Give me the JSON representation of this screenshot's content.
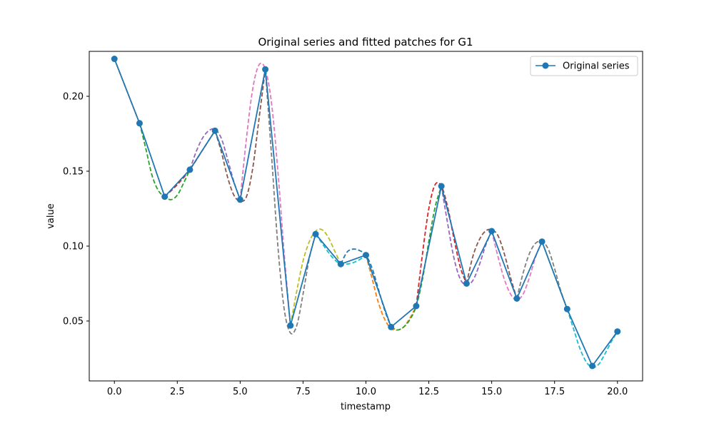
{
  "chart_data": {
    "type": "line",
    "title": "Original series and fitted patches for G1",
    "xlabel": "timestamp",
    "ylabel": "value",
    "xlim": [
      -1,
      21
    ],
    "ylim": [
      0.01,
      0.23
    ],
    "xticks": [
      0.0,
      2.5,
      5.0,
      7.5,
      10.0,
      12.5,
      15.0,
      17.5,
      20.0
    ],
    "xtick_labels": [
      "0.0",
      "2.5",
      "5.0",
      "7.5",
      "10.0",
      "12.5",
      "15.0",
      "17.5",
      "20.0"
    ],
    "yticks": [
      0.05,
      0.1,
      0.15,
      0.2
    ],
    "ytick_labels": [
      "0.05",
      "0.10",
      "0.15",
      "0.20"
    ],
    "grid": false,
    "legend": {
      "position": "top-right",
      "entries": [
        "Original series"
      ]
    },
    "series": [
      {
        "name": "Original series",
        "color": "#1f77b4",
        "marker": "circle",
        "x": [
          0,
          1,
          2,
          3,
          4,
          5,
          6,
          7,
          8,
          9,
          10,
          11,
          12,
          13,
          14,
          15,
          16,
          17,
          18,
          19,
          20
        ],
        "y": [
          0.225,
          0.182,
          0.133,
          0.151,
          0.177,
          0.131,
          0.218,
          0.047,
          0.108,
          0.088,
          0.094,
          0.046,
          0.06,
          0.14,
          0.075,
          0.11,
          0.065,
          0.103,
          0.058,
          0.02,
          0.043
        ]
      }
    ],
    "fitted_patches": [
      {
        "color": "#ff7f0e",
        "x": [
          0,
          0.5,
          1
        ],
        "y": [
          0.225,
          0.2035,
          0.182
        ]
      },
      {
        "color": "#2ca02c",
        "x": [
          1,
          1.25,
          1.5,
          1.75,
          2,
          2.25,
          2.5,
          2.75,
          3
        ],
        "y": [
          0.182,
          0.165,
          0.147,
          0.137,
          0.133,
          0.131,
          0.134,
          0.142,
          0.151
        ]
      },
      {
        "color": "#d62728",
        "x": [
          2,
          2.5,
          3,
          3.5,
          4
        ],
        "y": [
          0.133,
          0.141,
          0.151,
          0.164,
          0.177
        ]
      },
      {
        "color": "#9467bd",
        "x": [
          3,
          3.25,
          3.5,
          3.75,
          4,
          4.25,
          4.5,
          4.75,
          5
        ],
        "y": [
          0.151,
          0.163,
          0.172,
          0.177,
          0.178,
          0.172,
          0.158,
          0.143,
          0.131
        ]
      },
      {
        "color": "#8c564b",
        "x": [
          4,
          4.25,
          4.5,
          4.75,
          5,
          5.25,
          5.5,
          5.75,
          6
        ],
        "y": [
          0.177,
          0.163,
          0.146,
          0.134,
          0.13,
          0.133,
          0.152,
          0.185,
          0.218
        ]
      },
      {
        "color": "#e377c2",
        "x": [
          5,
          5.25,
          5.5,
          5.75,
          6,
          6.25,
          6.5,
          6.75,
          7
        ],
        "y": [
          0.131,
          0.172,
          0.205,
          0.221,
          0.218,
          0.195,
          0.15,
          0.095,
          0.047
        ]
      },
      {
        "color": "#7f7f7f",
        "x": [
          6,
          6.25,
          6.5,
          6.75,
          7,
          7.25,
          7.5,
          7.75,
          8
        ],
        "y": [
          0.218,
          0.16,
          0.1,
          0.058,
          0.042,
          0.047,
          0.068,
          0.092,
          0.108
        ]
      },
      {
        "color": "#bcbd22",
        "x": [
          7,
          7.25,
          7.5,
          7.75,
          8,
          8.25,
          8.5,
          8.75,
          9
        ],
        "y": [
          0.047,
          0.07,
          0.09,
          0.103,
          0.11,
          0.111,
          0.106,
          0.097,
          0.088
        ]
      },
      {
        "color": "#17becf",
        "x": [
          8,
          8.25,
          8.5,
          8.75,
          9,
          9.25,
          9.5,
          9.75,
          10
        ],
        "y": [
          0.108,
          0.102,
          0.096,
          0.091,
          0.088,
          0.088,
          0.089,
          0.091,
          0.094
        ]
      },
      {
        "color": "#1f77b4",
        "x": [
          9,
          9.25,
          9.5,
          9.75,
          10,
          10.25,
          10.5,
          10.75,
          11
        ],
        "y": [
          0.088,
          0.096,
          0.098,
          0.097,
          0.094,
          0.085,
          0.071,
          0.057,
          0.046
        ]
      },
      {
        "color": "#ff7f0e",
        "x": [
          10,
          10.25,
          10.5,
          10.75,
          11,
          11.25,
          11.5,
          11.75,
          12
        ],
        "y": [
          0.094,
          0.078,
          0.062,
          0.051,
          0.045,
          0.044,
          0.046,
          0.052,
          0.06
        ]
      },
      {
        "color": "#2ca02c",
        "x": [
          11,
          11.25,
          11.5,
          11.75,
          12,
          12.25,
          12.5,
          12.75,
          13
        ],
        "y": [
          0.046,
          0.044,
          0.046,
          0.051,
          0.06,
          0.078,
          0.103,
          0.126,
          0.14
        ]
      },
      {
        "color": "#d62728",
        "x": [
          12,
          12.25,
          12.5,
          12.75,
          13,
          13.25,
          13.5,
          13.75,
          14
        ],
        "y": [
          0.06,
          0.095,
          0.125,
          0.141,
          0.14,
          0.126,
          0.105,
          0.086,
          0.075
        ]
      },
      {
        "color": "#9467bd",
        "x": [
          13,
          13.25,
          13.5,
          13.75,
          14,
          14.25,
          14.5,
          14.75,
          15
        ],
        "y": [
          0.14,
          0.115,
          0.092,
          0.078,
          0.074,
          0.077,
          0.087,
          0.1,
          0.11
        ]
      },
      {
        "color": "#8c564b",
        "x": [
          14,
          14.25,
          14.5,
          14.75,
          15,
          15.25,
          15.5,
          15.75,
          16
        ],
        "y": [
          0.075,
          0.093,
          0.104,
          0.11,
          0.111,
          0.107,
          0.095,
          0.079,
          0.065
        ]
      },
      {
        "color": "#e377c2",
        "x": [
          15,
          15.25,
          15.5,
          15.75,
          16,
          16.25,
          16.5,
          16.75,
          17
        ],
        "y": [
          0.11,
          0.093,
          0.078,
          0.068,
          0.064,
          0.068,
          0.079,
          0.093,
          0.103
        ]
      },
      {
        "color": "#7f7f7f",
        "x": [
          16,
          16.25,
          16.5,
          16.75,
          17,
          17.25,
          17.5,
          17.75,
          18
        ],
        "y": [
          0.065,
          0.082,
          0.095,
          0.102,
          0.103,
          0.098,
          0.085,
          0.07,
          0.058
        ]
      },
      {
        "color": "#bcbd22",
        "x": [
          17,
          17.5,
          18
        ],
        "y": [
          0.103,
          0.0805,
          0.058
        ]
      },
      {
        "color": "#17becf",
        "x": [
          18,
          18.25,
          18.5,
          18.75,
          19,
          19.25,
          19.5,
          19.75,
          20
        ],
        "y": [
          0.058,
          0.045,
          0.032,
          0.023,
          0.019,
          0.021,
          0.028,
          0.036,
          0.043
        ]
      }
    ]
  }
}
